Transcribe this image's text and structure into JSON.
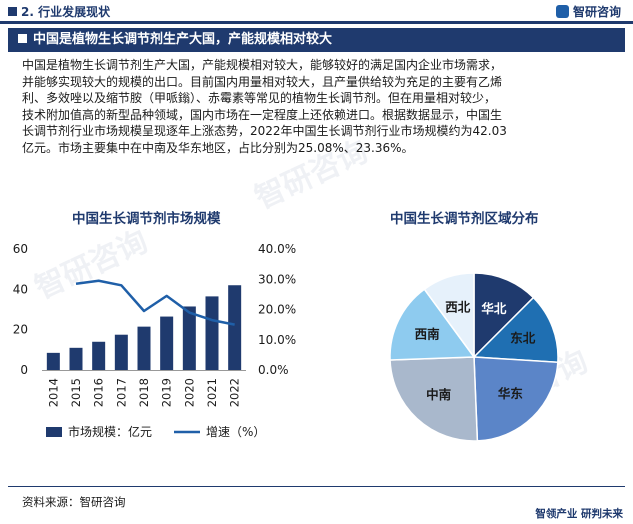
{
  "header": {
    "section_title": "2. 行业发展现状",
    "logo_text": "智研咨询",
    "logo_icon": "zhiyan-logo-icon"
  },
  "banner": {
    "title": "中国是植物生长调节剂生产大国，产能规模相对较大"
  },
  "paragraph": [
    "中国是植物生长调节剂生产大国，产能规模相对较大，能够较好的满足国内企业市场需求，",
    "并能够实现较大的规模的出口。目前国内用量相对较大，且产量供给较为充足的主要有乙烯",
    "利、多效唑以及缩节胺（甲哌鎓）、赤霉素等常见的植物生长调节剂。但在用量相对较少，",
    "技术附加值高的新型品种领域，国内市场在一定程度上还依赖进口。根据数据显示，中国生",
    "长调节剂行业市场规模呈现逐年上涨态势，2022年中国生长调节剂行业市场规模约为42.03",
    "亿元。市场主要集中在中南及华东地区，占比分别为25.08%、23.36%。"
  ],
  "chart_data": [
    {
      "type": "bar",
      "title": "中国生长调节剂市场规模",
      "categories": [
        "2014",
        "2015",
        "2016",
        "2017",
        "2018",
        "2019",
        "2020",
        "2021",
        "2022"
      ],
      "series": [
        {
          "name": "市场规模：亿元",
          "type": "bar",
          "axis": "left",
          "values": [
            8.5,
            11.0,
            14.0,
            17.5,
            21.5,
            26.5,
            31.5,
            36.5,
            42.03
          ]
        },
        {
          "name": "增速（%）",
          "type": "line",
          "axis": "right",
          "values": [
            null,
            0.285,
            0.295,
            0.28,
            0.195,
            0.245,
            0.19,
            0.165,
            0.15
          ]
        }
      ],
      "y_left": {
        "min": 0,
        "max": 60,
        "ticks": [
          "0",
          "20",
          "40",
          "60"
        ]
      },
      "y_right": {
        "min": 0,
        "max": 0.4,
        "ticks": [
          "0.0%",
          "10.0%",
          "20.0%",
          "30.0%",
          "40.0%"
        ]
      },
      "colors": {
        "bar": "#1f3a6e",
        "line": "#1f5fa8"
      },
      "legend": "bottom"
    },
    {
      "type": "pie",
      "title": "中国生长调节剂区域分布",
      "slices": [
        {
          "label": "华北",
          "value": 12.5,
          "color": "#1f3a6e",
          "text_color": "#ffffff"
        },
        {
          "label": "东北",
          "value": 13.5,
          "color": "#1f6fb2",
          "text_color": "#1a1a1a"
        },
        {
          "label": "华东",
          "value": 23.36,
          "color": "#5b85c8",
          "text_color": "#1a1a1a"
        },
        {
          "label": "中南",
          "value": 25.08,
          "color": "#a9b8cc",
          "text_color": "#1a1a1a"
        },
        {
          "label": "西南",
          "value": 15.5,
          "color": "#8ecbef",
          "text_color": "#1a1a1a"
        },
        {
          "label": "西北",
          "value": 10.06,
          "color": "#e6f1fb",
          "text_color": "#1a1a1a"
        }
      ]
    }
  ],
  "footer": {
    "source": "资料来源：智研咨询",
    "slogan": "智领产业  研判未来"
  },
  "watermark": {
    "text": "智研咨询"
  }
}
